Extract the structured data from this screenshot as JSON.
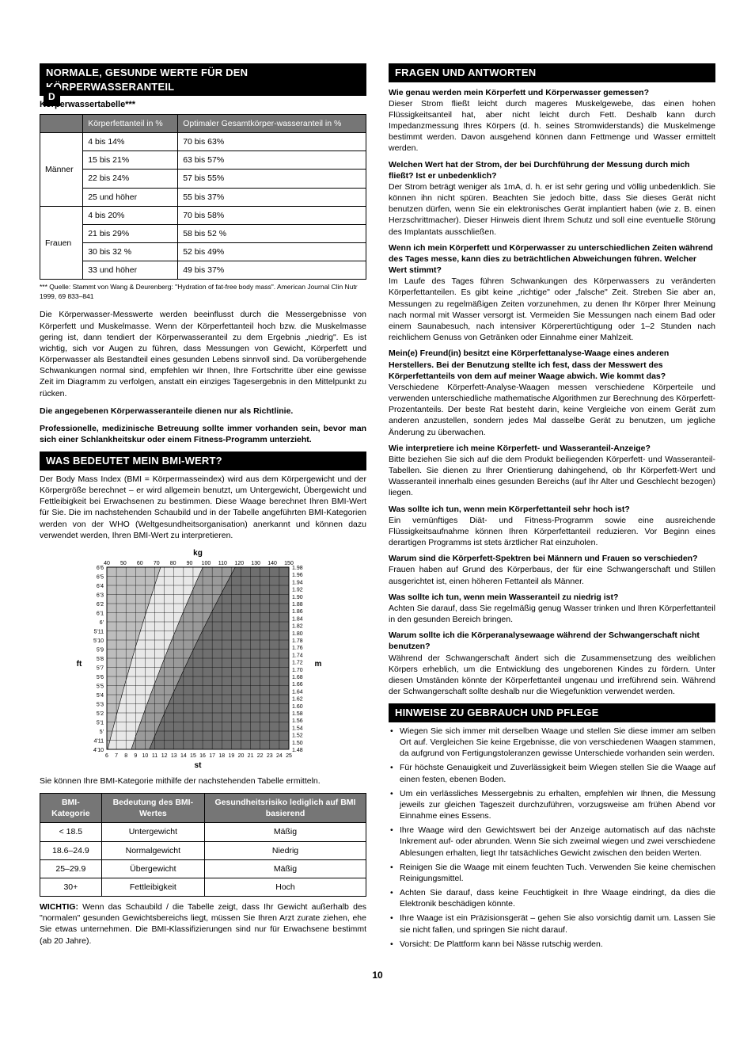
{
  "pageMarker": "D",
  "pageNumber": "10",
  "left": {
    "sec1": {
      "title": "NORMALE, GESUNDE WERTE FÜR DEN KÖRPERWASSERANTEIL",
      "subtitle": "Körperwassertabelle***",
      "headers": [
        "",
        "Körperfettanteil in %",
        "Optimaler Gesamtkörper-wasseranteil in %"
      ],
      "groups": [
        {
          "label": "Männer",
          "rows": [
            [
              "4 bis 14%",
              "70 bis 63%"
            ],
            [
              "15 bis 21%",
              "63 bis 57%"
            ],
            [
              "22 bis 24%",
              "57 bis 55%"
            ],
            [
              "25 und höher",
              "55 bis 37%"
            ]
          ]
        },
        {
          "label": "Frauen",
          "rows": [
            [
              "4 bis 20%",
              "70 bis 58%"
            ],
            [
              "21 bis 29%",
              "58 bis 52 %"
            ],
            [
              "30 bis 32 %",
              "52 bis 49%"
            ],
            [
              "33 und höher",
              "49 bis 37%"
            ]
          ]
        }
      ],
      "footnote": "*** Quelle: Stammt von Wang & Deurenberg: \"Hydration of fat-free body mass\". American Journal Clin Nutr 1999, 69 833–841",
      "para1": "Die Körperwasser-Messwerte werden beeinflusst durch die Messergebnisse von Körperfett und Muskelmasse. Wenn der Körperfettanteil hoch bzw. die Muskelmasse gering ist, dann tendiert der Körperwasseranteil zu dem Ergebnis „niedrig\". Es ist wichtig, sich vor Augen zu führen, dass Messungen von Gewicht, Körperfett und Körperwasser als Bestandteil eines gesunden Lebens sinnvoll sind. Da vorübergehende Schwankungen normal sind, empfehlen wir Ihnen, Ihre Fortschritte über eine gewisse Zeit im Diagramm zu verfolgen, anstatt ein einziges Tagesergebnis in den Mittelpunkt zu rücken.",
      "bold1": "Die angegebenen Körperwasseranteile dienen nur als Richtlinie.",
      "bold2": "Professionelle, medizinische Betreuung sollte immer vorhanden sein, bevor man sich einer Schlankheitskur oder einem Fitness-Programm unterzieht."
    },
    "sec2": {
      "title": "WAS BEDEUTET MEIN BMI-WERT?",
      "para1": "Der Body Mass Index (BMI = Körpermasseindex) wird aus dem Körpergewicht und der Körpergröße berechnet – er wird allgemein benutzt, um Untergewicht, Übergewicht und Fettleibigkeit bei Erwachsenen zu bestimmen. Diese Waage berechnet Ihren BMI-Wert für Sie. Die im nachstehenden Schaubild und in der Tabelle angeführten BMI-Kategorien werden von der WHO (Weltgesundheitsorganisation) anerkannt und können dazu verwendet werden, Ihren BMI-Wert zu interpretieren.",
      "chart": {
        "kg_label": "kg",
        "ft_label": "ft",
        "st_label": "st",
        "m_label": "m",
        "kg_ticks": [
          "40",
          "50",
          "60",
          "70",
          "80",
          "90",
          "100",
          "110",
          "120",
          "130",
          "140",
          "150"
        ],
        "st_ticks": [
          "6",
          "7",
          "8",
          "9",
          "10",
          "11",
          "12",
          "13",
          "14",
          "15",
          "16",
          "17",
          "18",
          "19",
          "20",
          "21",
          "22",
          "23",
          "24",
          "25"
        ],
        "ft_ticks": [
          "4'10",
          "4'11",
          "5'",
          "5'1",
          "5'2",
          "5'3",
          "5'4",
          "5'5",
          "5'6",
          "5'7",
          "5'8",
          "5'9",
          "5'10",
          "5'11",
          "6'",
          "6'1",
          "6'2",
          "6'3",
          "6'4",
          "6'5",
          "6'6"
        ],
        "m_ticks": [
          "1.48",
          "1.50",
          "1.52",
          "1.54",
          "1.56",
          "1.58",
          "1.60",
          "1.62",
          "1.64",
          "1.66",
          "1.68",
          "1.70",
          "1.72",
          "1.74",
          "1.76",
          "1.78",
          "1.80",
          "1.82",
          "1.84",
          "1.86",
          "1.88",
          "1.90",
          "1.92",
          "1.94",
          "1.96",
          "1.98"
        ],
        "band_colors": [
          "#bdbdbd",
          "#e8e8e8",
          "#9a9a9a",
          "#6f6f6f"
        ]
      },
      "caption": "Sie können Ihre BMI-Kategorie mithilfe der nachstehenden Tabelle ermitteln.",
      "bmiHeaders": [
        "BMI-Kategorie",
        "Bedeutung des BMI-Wertes",
        "Gesundheitsrisiko lediglich auf BMI basierend"
      ],
      "bmiRows": [
        [
          "< 18.5",
          "Untergewicht",
          "Mäßig"
        ],
        [
          "18.6–24.9",
          "Normalgewicht",
          "Niedrig"
        ],
        [
          "25–29.9",
          "Übergewicht",
          "Mäßig"
        ],
        [
          "30+",
          "Fettleibigkeit",
          "Hoch"
        ]
      ],
      "important": "WICHTIG: Wenn das Schaubild / die Tabelle zeigt, dass Ihr Gewicht außerhalb des \"normalen\" gesunden Gewichtsbereichs liegt, müssen Sie Ihren Arzt zurate ziehen, ehe Sie etwas unternehmen. Die BMI-Klassifizierungen sind nur für Erwachsene bestimmt (ab 20 Jahre)."
    }
  },
  "right": {
    "faqTitle": "FRAGEN UND ANTWORTEN",
    "faq": [
      {
        "q": "Wie genau werden mein Körperfett und Körperwasser gemessen?",
        "a": "Dieser Strom fließt leicht durch mageres Muskelgewebe, das einen hohen Flüssigkeitsanteil hat, aber nicht leicht durch Fett. Deshalb kann durch Impedanzmessung Ihres Körpers (d. h. seines Stromwiderstands) die Muskelmenge bestimmt werden. Davon ausgehend können dann Fettmenge und Wasser ermittelt werden."
      },
      {
        "q": "Welchen Wert hat der Strom, der bei Durchführung der Messung durch mich fließt? Ist er unbedenklich?",
        "a": "Der Strom beträgt weniger als 1mA, d. h. er ist sehr gering und völlig unbedenklich. Sie können ihn nicht spüren. Beachten Sie jedoch bitte, dass Sie dieses Gerät nicht benutzen dürfen, wenn Sie ein elektronisches Gerät implantiert haben (wie z. B. einen Herzschrittmacher). Dieser Hinweis dient Ihrem Schutz und soll eine eventuelle Störung des Implantats ausschließen."
      },
      {
        "q": "Wenn ich mein Körperfett und Körperwasser zu unterschiedlichen Zeiten während des Tages messe, kann dies zu beträchtlichen Abweichungen führen. Welcher Wert stimmt?",
        "a": "Im Laufe des Tages führen Schwankungen des Körperwassers zu veränderten Körperfettanteilen. Es gibt keine „richtige\" oder „falsche\" Zeit. Streben Sie aber an, Messungen zu regelmäßigen Zeiten vorzunehmen, zu denen Ihr Körper Ihrer Meinung nach normal mit Wasser versorgt ist. Vermeiden Sie Messungen nach einem Bad oder einem Saunabesuch, nach intensiver Körperertüchtigung oder 1–2 Stunden nach reichlichem Genuss von Getränken oder Einnahme einer Mahlzeit."
      },
      {
        "q": "Mein(e) Freund(in) besitzt eine Körperfettanalyse-Waage eines anderen Herstellers. Bei der Benutzung stellte ich fest, dass der Messwert des Körperfettanteils von dem auf meiner Waage abwich. Wie kommt das?",
        "a": "Verschiedene Körperfett-Analyse-Waagen messen verschiedene Körperteile und verwenden unterschiedliche mathematische Algorithmen zur Berechnung des Körperfett-Prozentanteils. Der beste Rat besteht darin, keine Vergleiche von einem Gerät zum anderen anzustellen, sondern jedes Mal dasselbe Gerät zu benutzen, um jegliche Änderung zu überwachen."
      },
      {
        "q": "Wie interpretiere ich meine Körperfett- und Wasseranteil-Anzeige?",
        "a": "Bitte beziehen Sie sich auf die dem Produkt beiliegenden Körperfett- und Wasseranteil-Tabellen. Sie dienen zu Ihrer Orientierung dahingehend, ob Ihr Körperfett-Wert und Wasseranteil innerhalb eines gesunden Bereichs (auf Ihr Alter und Geschlecht bezogen) liegen."
      },
      {
        "q": "Was sollte ich tun, wenn mein Körperfettanteil sehr hoch ist?",
        "a": "Ein vernünftiges Diät- und Fitness-Programm sowie eine ausreichende Flüssigkeitsaufnahme können Ihren Körperfettanteil reduzieren. Vor Beginn eines derartigen Programms ist stets ärztlicher Rat einzuholen."
      },
      {
        "q": "Warum sind die Körperfett-Spektren bei Männern und Frauen so verschieden?",
        "a": "Frauen haben auf Grund des Körperbaus, der für eine Schwangerschaft und Stillen ausgerichtet ist, einen höheren Fettanteil als Männer."
      },
      {
        "q": "Was sollte ich tun, wenn mein Wasseranteil zu niedrig ist?",
        "a": "Achten Sie darauf, dass Sie regelmäßig genug Wasser trinken und Ihren Körperfettanteil in den gesunden Bereich bringen."
      },
      {
        "q": "Warum sollte ich die Körperanalysewaage während der Schwangerschaft nicht benutzen?",
        "a": "Während der Schwangerschaft ändert sich die Zusammensetzung des weiblichen Körpers erheblich, um die Entwicklung des ungeborenen Kindes zu fördern. Unter diesen Umständen könnte der Körperfettanteil ungenau und irreführend sein. Während der Schwangerschaft sollte deshalb nur die Wiegefunktion verwendet werden."
      }
    ],
    "hintsTitle": "HINWEISE ZU GEBRAUCH UND PFLEGE",
    "hints": [
      "Wiegen Sie sich immer mit derselben Waage und stellen Sie diese immer am selben Ort auf. Vergleichen Sie keine Ergebnisse, die von verschiedenen Waagen stammen, da aufgrund von Fertigungstoleranzen gewisse Unterschiede vorhanden sein werden.",
      "Für höchste Genauigkeit und Zuverlässigkeit beim Wiegen stellen Sie die Waage auf einen festen, ebenen Boden.",
      "Um ein verlässliches Messergebnis zu erhalten, empfehlen wir Ihnen, die Messung jeweils zur gleichen Tageszeit durchzuführen, vorzugsweise am frühen Abend vor Einnahme eines Essens.",
      "Ihre Waage wird den Gewichtswert bei der Anzeige automatisch auf das nächste Inkrement auf- oder abrunden. Wenn Sie sich zweimal wiegen und zwei verschiedene Ablesungen erhalten, liegt Ihr tatsächliches Gewicht zwischen den beiden Werten.",
      "Reinigen Sie die Waage mit einem feuchten Tuch. Verwenden Sie keine chemischen Reinigungsmittel.",
      "Achten Sie darauf, dass keine Feuchtigkeit in Ihre Waage eindringt, da dies die Elektronik beschädigen könnte.",
      "Ihre Waage ist ein Präzisionsgerät – gehen Sie also vorsichtig damit um. Lassen Sie sie nicht fallen, und springen Sie nicht darauf.",
      "Vorsicht: De Plattform kann bei Nässe rutschig werden."
    ]
  }
}
